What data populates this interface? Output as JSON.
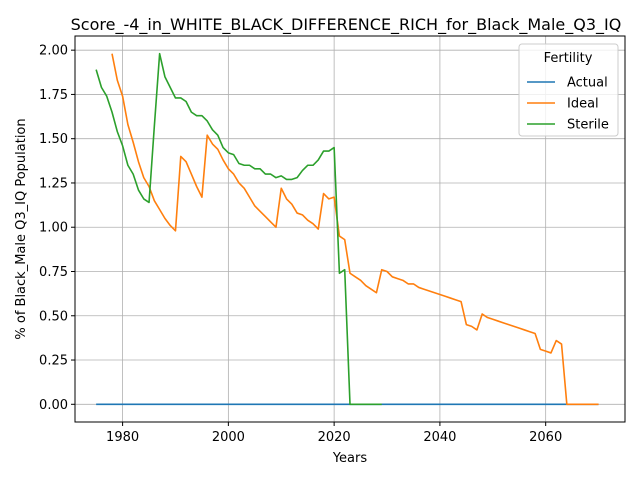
{
  "chart_data": {
    "type": "line",
    "title": "Score_-4_in_WHITE_BLACK_DIFFERENCE_RICH_for_Black_Male_Q3_IQ",
    "xlabel": "Years",
    "ylabel": "% of Black_Male Q3_IQ Population",
    "xlim": [
      1971,
      2075
    ],
    "ylim": [
      -0.1,
      2.08
    ],
    "xticks": [
      1980,
      2000,
      2020,
      2040,
      2060
    ],
    "yticks": [
      0.0,
      0.25,
      0.5,
      0.75,
      1.0,
      1.25,
      1.5,
      1.75,
      2.0
    ],
    "ytick_labels": [
      "0.00",
      "0.25",
      "0.50",
      "0.75",
      "1.00",
      "1.25",
      "1.50",
      "1.75",
      "2.00"
    ],
    "grid": true,
    "legend": {
      "title": "Fertility",
      "position": "top-right"
    },
    "series": [
      {
        "name": "Actual",
        "color": "#1f77b4",
        "points": [
          [
            1975,
            0.0
          ],
          [
            2070,
            0.0
          ]
        ]
      },
      {
        "name": "Ideal",
        "color": "#ff7f0e",
        "points": [
          [
            1978,
            1.98
          ],
          [
            1979,
            1.83
          ],
          [
            1980,
            1.74
          ],
          [
            1981,
            1.58
          ],
          [
            1982,
            1.48
          ],
          [
            1983,
            1.37
          ],
          [
            1984,
            1.28
          ],
          [
            1985,
            1.23
          ],
          [
            1986,
            1.15
          ],
          [
            1987,
            1.1
          ],
          [
            1988,
            1.05
          ],
          [
            1989,
            1.01
          ],
          [
            1990,
            0.98
          ],
          [
            1991,
            1.4
          ],
          [
            1992,
            1.37
          ],
          [
            1993,
            1.3
          ],
          [
            1994,
            1.23
          ],
          [
            1995,
            1.17
          ],
          [
            1996,
            1.52
          ],
          [
            1997,
            1.47
          ],
          [
            1998,
            1.44
          ],
          [
            1999,
            1.38
          ],
          [
            2000,
            1.33
          ],
          [
            2001,
            1.3
          ],
          [
            2002,
            1.25
          ],
          [
            2003,
            1.22
          ],
          [
            2004,
            1.17
          ],
          [
            2005,
            1.12
          ],
          [
            2006,
            1.09
          ],
          [
            2007,
            1.06
          ],
          [
            2008,
            1.03
          ],
          [
            2009,
            1.0
          ],
          [
            2010,
            1.22
          ],
          [
            2011,
            1.16
          ],
          [
            2012,
            1.13
          ],
          [
            2013,
            1.08
          ],
          [
            2014,
            1.07
          ],
          [
            2015,
            1.04
          ],
          [
            2016,
            1.02
          ],
          [
            2017,
            0.99
          ],
          [
            2018,
            1.19
          ],
          [
            2019,
            1.16
          ],
          [
            2020,
            1.17
          ],
          [
            2021,
            0.95
          ],
          [
            2022,
            0.93
          ],
          [
            2023,
            0.74
          ],
          [
            2024,
            0.72
          ],
          [
            2025,
            0.7
          ],
          [
            2026,
            0.67
          ],
          [
            2027,
            0.65
          ],
          [
            2028,
            0.63
          ],
          [
            2029,
            0.76
          ],
          [
            2030,
            0.75
          ],
          [
            2031,
            0.72
          ],
          [
            2032,
            0.71
          ],
          [
            2033,
            0.7
          ],
          [
            2034,
            0.68
          ],
          [
            2035,
            0.68
          ],
          [
            2036,
            0.66
          ],
          [
            2037,
            0.65
          ],
          [
            2038,
            0.64
          ],
          [
            2039,
            0.63
          ],
          [
            2040,
            0.62
          ],
          [
            2041,
            0.61
          ],
          [
            2042,
            0.6
          ],
          [
            2043,
            0.59
          ],
          [
            2044,
            0.58
          ],
          [
            2045,
            0.45
          ],
          [
            2046,
            0.44
          ],
          [
            2047,
            0.42
          ],
          [
            2048,
            0.51
          ],
          [
            2049,
            0.49
          ],
          [
            2050,
            0.48
          ],
          [
            2051,
            0.47
          ],
          [
            2052,
            0.46
          ],
          [
            2053,
            0.45
          ],
          [
            2054,
            0.44
          ],
          [
            2055,
            0.43
          ],
          [
            2056,
            0.42
          ],
          [
            2057,
            0.41
          ],
          [
            2058,
            0.4
          ],
          [
            2059,
            0.31
          ],
          [
            2060,
            0.3
          ],
          [
            2061,
            0.29
          ],
          [
            2062,
            0.36
          ],
          [
            2063,
            0.34
          ],
          [
            2064,
            0.0
          ],
          [
            2065,
            0.0
          ],
          [
            2066,
            0.0
          ],
          [
            2067,
            0.0
          ],
          [
            2068,
            0.0
          ],
          [
            2069,
            0.0
          ],
          [
            2070,
            0.0
          ]
        ]
      },
      {
        "name": "Sterile",
        "color": "#2ca02c",
        "points": [
          [
            1975,
            1.89
          ],
          [
            1976,
            1.79
          ],
          [
            1977,
            1.74
          ],
          [
            1978,
            1.65
          ],
          [
            1979,
            1.54
          ],
          [
            1980,
            1.46
          ],
          [
            1981,
            1.35
          ],
          [
            1982,
            1.3
          ],
          [
            1983,
            1.21
          ],
          [
            1984,
            1.16
          ],
          [
            1985,
            1.14
          ],
          [
            1986,
            1.57
          ],
          [
            1987,
            1.98
          ],
          [
            1988,
            1.85
          ],
          [
            1989,
            1.79
          ],
          [
            1990,
            1.73
          ],
          [
            1991,
            1.73
          ],
          [
            1992,
            1.71
          ],
          [
            1993,
            1.65
          ],
          [
            1994,
            1.63
          ],
          [
            1995,
            1.63
          ],
          [
            1996,
            1.6
          ],
          [
            1997,
            1.55
          ],
          [
            1998,
            1.52
          ],
          [
            1999,
            1.45
          ],
          [
            2000,
            1.42
          ],
          [
            2001,
            1.41
          ],
          [
            2002,
            1.36
          ],
          [
            2003,
            1.35
          ],
          [
            2004,
            1.35
          ],
          [
            2005,
            1.33
          ],
          [
            2006,
            1.33
          ],
          [
            2007,
            1.3
          ],
          [
            2008,
            1.3
          ],
          [
            2009,
            1.28
          ],
          [
            2010,
            1.29
          ],
          [
            2011,
            1.27
          ],
          [
            2012,
            1.27
          ],
          [
            2013,
            1.28
          ],
          [
            2014,
            1.32
          ],
          [
            2015,
            1.35
          ],
          [
            2016,
            1.35
          ],
          [
            2017,
            1.38
          ],
          [
            2018,
            1.43
          ],
          [
            2019,
            1.43
          ],
          [
            2020,
            1.45
          ],
          [
            2021,
            0.74
          ],
          [
            2022,
            0.76
          ],
          [
            2023,
            0.0
          ],
          [
            2024,
            0.0
          ],
          [
            2025,
            0.0
          ],
          [
            2026,
            0.0
          ],
          [
            2027,
            0.0
          ],
          [
            2028,
            0.0
          ],
          [
            2029,
            0.0
          ]
        ]
      }
    ]
  }
}
